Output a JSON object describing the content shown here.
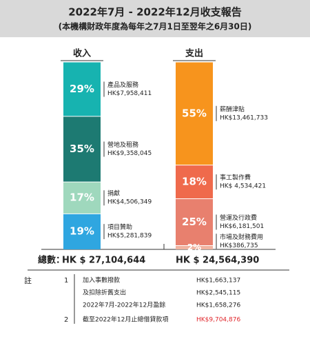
{
  "header": {
    "title": "2022年7月 - 2022年12月收支報告",
    "subtitle": "(本機構財政年度為每年之7月1日至翌年之6月30日)"
  },
  "chart_data": {
    "type": "stacked_bar",
    "columns": [
      {
        "name": "收入",
        "total_label": "HK $ 27,104,644",
        "categories": [
          "產品及服務",
          "營地及租務",
          "捐獻",
          "項目贊助"
        ],
        "values": [
          29,
          35,
          17,
          19
        ],
        "value_labels": [
          "29%",
          "35%",
          "17%",
          "19%"
        ],
        "amounts": [
          "HK$7,958,411",
          "HK$9,358,045",
          "HK$4,506,349",
          "HK$5,281,839"
        ],
        "colors": [
          "#17b3b0",
          "#1d7a72",
          "#9fd8bd",
          "#2fa6e0"
        ]
      },
      {
        "name": "支出",
        "total_label": "HK $ 24,564,390",
        "categories": [
          "薪酬津貼",
          "事工製作費",
          "營運及行政費",
          "市場及財務費用"
        ],
        "values": [
          55,
          18,
          25,
          2
        ],
        "value_labels": [
          "55%",
          "18%",
          "25%",
          "2%"
        ],
        "amounts": [
          "HK$13,461,733",
          "HK$ 4,534,421",
          "HK$6,181,501",
          "HK$386,735"
        ],
        "colors": [
          "#f7941d",
          "#ef6a4c",
          "#e8806e",
          "#f0b3a0"
        ]
      }
    ]
  },
  "totals": {
    "label": "總數："
  },
  "notes": {
    "label": "註",
    "rows": [
      {
        "num": "1",
        "text": "加入事數撥款",
        "amount": "HK$1,663,137"
      },
      {
        "text": "及扣除折舊支出",
        "amount": "HK$2,545,115"
      },
      {
        "text": "2022年7月-2022年12月盈餘",
        "amount": "HK$1,658,276"
      },
      {
        "num": "2",
        "text": "截至2022年12月止總借貸款項",
        "amount": "HK$9,704,876",
        "color": "#e0262b"
      }
    ]
  }
}
